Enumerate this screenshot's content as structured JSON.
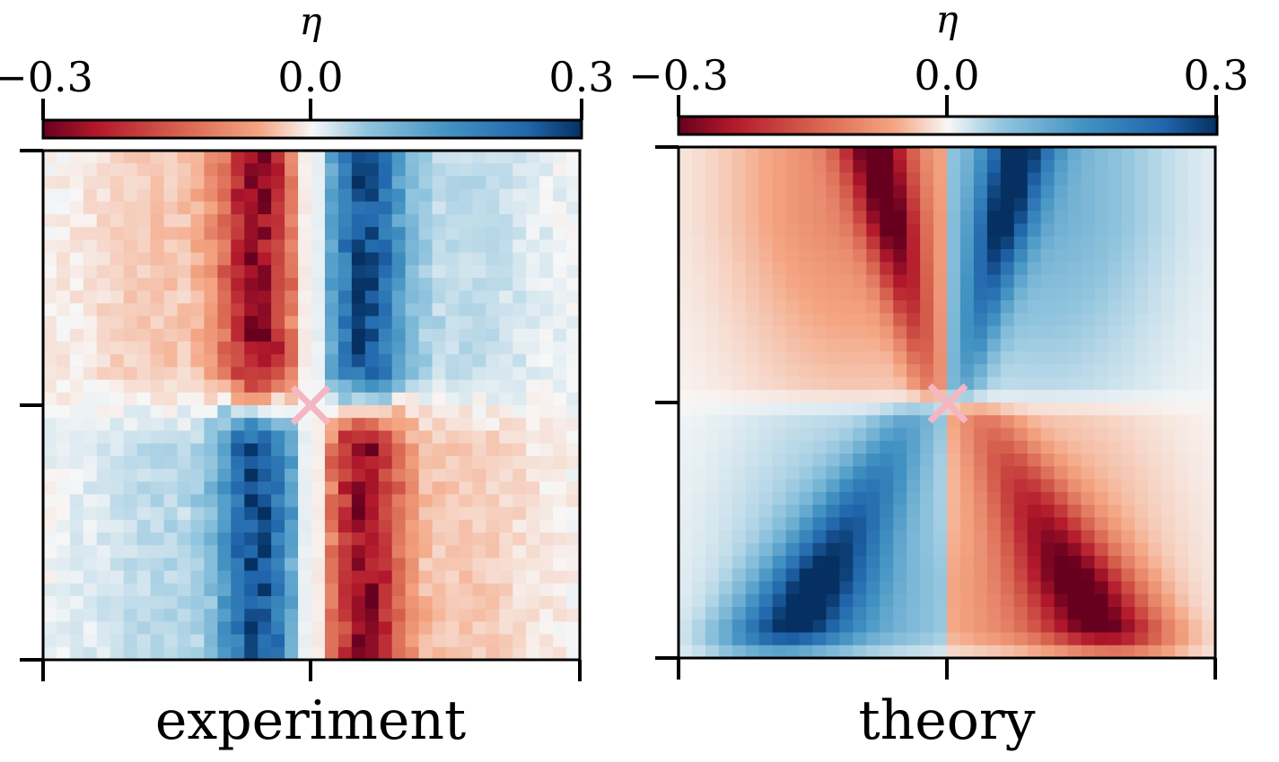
{
  "colorbar": {
    "label": "η",
    "ticks": [
      "−0.3",
      "0.0",
      "0.3"
    ],
    "vmin": -0.3,
    "vmax": 0.3,
    "colormap": "RdBu (red negative, blue positive)",
    "colors": {
      "neg_strong": "#8c1326",
      "neg_mid": "#e07a63",
      "zero": "#f7f7f7",
      "pos_mid": "#6fa6d0",
      "pos_strong": "#173f7a"
    }
  },
  "marker": {
    "symbol": "×",
    "color": "#f4b6c2"
  },
  "chart_data": [
    {
      "type": "heatmap",
      "title": "experiment",
      "grid": [
        40,
        40
      ],
      "colorbar_label": "η",
      "clim": [
        -0.3,
        0.3
      ],
      "x_ticks": 3,
      "y_ticks": 3,
      "tick_labels_shown": false,
      "pattern": "antisymmetric: negative (red) band just left of center in upper half, positive (blue) just right; signs swap in lower half",
      "peak_abs_value": 0.26,
      "center_marker": true
    },
    {
      "type": "heatmap",
      "title": "theory",
      "grid": [
        40,
        40
      ],
      "colorbar_label": "η",
      "clim": [
        -0.3,
        0.3
      ],
      "x_ticks": 3,
      "y_ticks": 3,
      "tick_labels_shown": false,
      "pattern": "four-lobed butterfly: red lobes upper-left and lower-right, blue lobes upper-right and lower-left",
      "peak_abs_value": 0.28,
      "center_marker": true
    }
  ]
}
